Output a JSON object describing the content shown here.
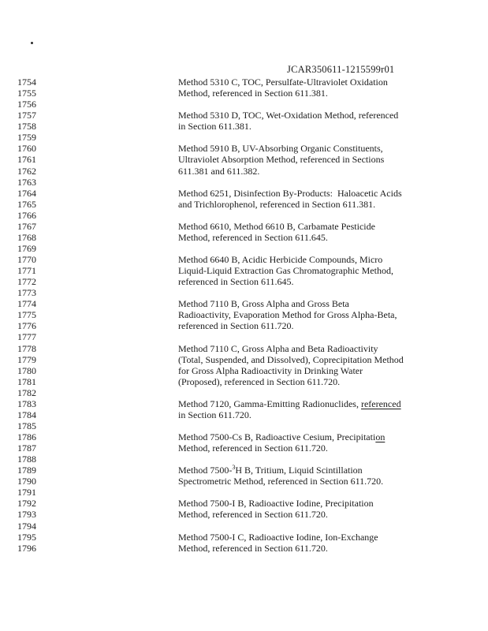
{
  "header": {
    "docket_id": "JCAR350611-1215599r01"
  },
  "document": {
    "lines": [
      {
        "num": "1754",
        "text": "Method 5310 C, TOC, Persulfate-Ultraviolet Oxidation"
      },
      {
        "num": "1755",
        "text": "Method, referenced in Section 611.381."
      },
      {
        "num": "1756",
        "text": ""
      },
      {
        "num": "1757",
        "text": "Method 5310 D, TOC, Wet-Oxidation Method, referenced"
      },
      {
        "num": "1758",
        "text": "in Section 611.381."
      },
      {
        "num": "1759",
        "text": ""
      },
      {
        "num": "1760",
        "text": "Method 5910 B, UV-Absorbing Organic Constituents,"
      },
      {
        "num": "1761",
        "text": "Ultraviolet Absorption Method, referenced in Sections"
      },
      {
        "num": "1762",
        "text": "611.381 and 611.382."
      },
      {
        "num": "1763",
        "text": ""
      },
      {
        "num": "1764",
        "text": "Method 6251, Disinfection By-Products:  Haloacetic Acids"
      },
      {
        "num": "1765",
        "text": "and Trichlorophenol, referenced in Section 611.381."
      },
      {
        "num": "1766",
        "text": ""
      },
      {
        "num": "1767",
        "text": "Method 6610, Method 6610 B, Carbamate Pesticide"
      },
      {
        "num": "1768",
        "text": "Method, referenced in Section 611.645."
      },
      {
        "num": "1769",
        "text": ""
      },
      {
        "num": "1770",
        "text": "Method 6640 B, Acidic Herbicide Compounds, Micro"
      },
      {
        "num": "1771",
        "text": "Liquid-Liquid Extraction Gas Chromatographic Method,"
      },
      {
        "num": "1772",
        "text": "referenced in Section 611.645."
      },
      {
        "num": "1773",
        "text": ""
      },
      {
        "num": "1774",
        "text": "Method 7110 B, Gross Alpha and Gross Beta"
      },
      {
        "num": "1775",
        "text": "Radioactivity, Evaporation Method for Gross Alpha-Beta,"
      },
      {
        "num": "1776",
        "text": "referenced in Section 611.720."
      },
      {
        "num": "1777",
        "text": ""
      },
      {
        "num": "1778",
        "text": "Method 7110 C, Gross Alpha and Beta Radioactivity"
      },
      {
        "num": "1779",
        "text": "(Total, Suspended, and Dissolved), Coprecipitation Method"
      },
      {
        "num": "1780",
        "text": "for Gross Alpha Radioactivity in Drinking Water"
      },
      {
        "num": "1781",
        "text": "(Proposed), referenced in Section 611.720."
      },
      {
        "num": "1782",
        "text": ""
      },
      {
        "num": "1783",
        "segments": [
          {
            "t": "Method 7120, Gamma-Emitting Radionuclides, "
          },
          {
            "t": "referenced",
            "u": true
          }
        ]
      },
      {
        "num": "1784",
        "text": "in Section 611.720."
      },
      {
        "num": "1785",
        "text": ""
      },
      {
        "num": "1786",
        "segments": [
          {
            "t": "Method 7500-Cs B, Radioactive Cesium, Precipitati"
          },
          {
            "t": "on",
            "u": true
          }
        ]
      },
      {
        "num": "1787",
        "text": "Method, referenced in Section 611.720."
      },
      {
        "num": "1788",
        "text": ""
      },
      {
        "num": "1789",
        "segments": [
          {
            "t": "Method 7500-"
          },
          {
            "t": "3",
            "sup": true
          },
          {
            "t": "H B, Tritium, Liquid Scintillation"
          }
        ]
      },
      {
        "num": "1790",
        "text": "Spectrometric Method, referenced in Section 611.720."
      },
      {
        "num": "1791",
        "text": ""
      },
      {
        "num": "1792",
        "text": "Method 7500-I B, Radioactive Iodine, Precipitation"
      },
      {
        "num": "1793",
        "text": "Method, referenced in Section 611.720."
      },
      {
        "num": "1794",
        "text": ""
      },
      {
        "num": "1795",
        "text": "Method 7500-I C, Radioactive Iodine, Ion-Exchange"
      },
      {
        "num": "1796",
        "text": "Method, referenced in Section 611.720."
      }
    ]
  }
}
